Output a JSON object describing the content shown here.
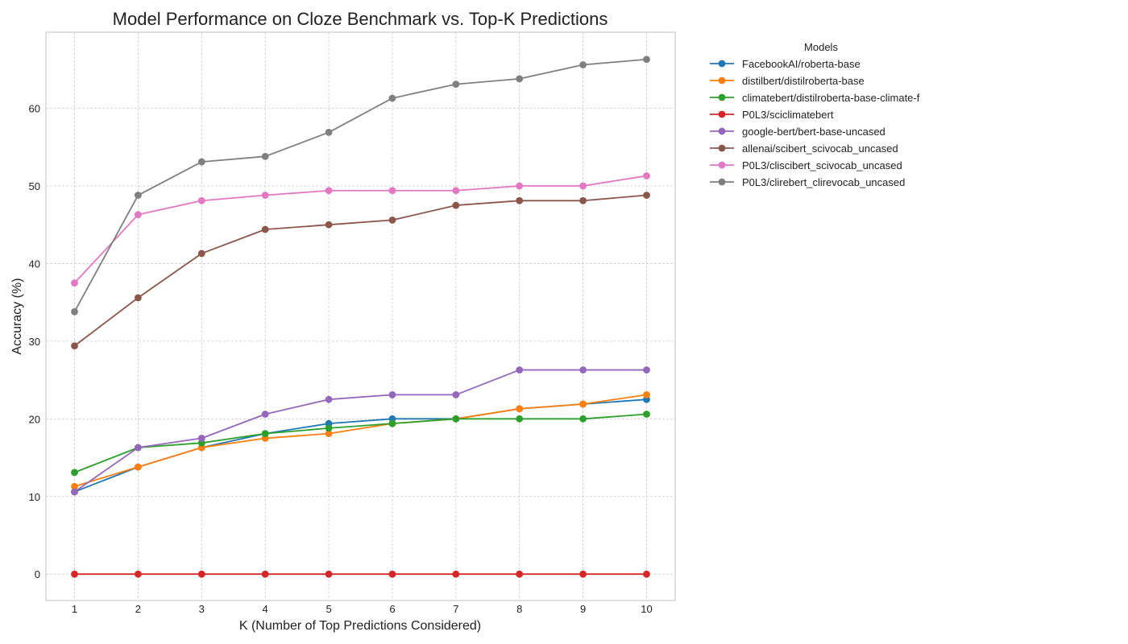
{
  "chart_data": {
    "type": "line",
    "title": "Model Performance on Cloze Benchmark vs. Top-K Predictions",
    "xlabel": "K (Number of Top Predictions Considered)",
    "ylabel": "Accuracy (%)",
    "x": [
      1,
      2,
      3,
      4,
      5,
      6,
      7,
      8,
      9,
      10
    ],
    "xlim": [
      0.55,
      10.45
    ],
    "ylim": [
      -3.4,
      69.8
    ],
    "xticks": [
      "1",
      "2",
      "3",
      "4",
      "5",
      "6",
      "7",
      "8",
      "9",
      "10"
    ],
    "yticks": [
      0,
      10,
      20,
      30,
      40,
      50,
      60
    ],
    "ytick_labels": [
      "0",
      "10",
      "20",
      "30",
      "40",
      "50",
      "60"
    ],
    "grid": true,
    "legend_title": "Models",
    "legend_position": "outside right, top",
    "series": [
      {
        "name": "FacebookAI/roberta-base",
        "color": "#1f77b4",
        "values": [
          10.6,
          13.8,
          16.3,
          18.1,
          19.4,
          20.0,
          20.0,
          21.3,
          21.9,
          22.5
        ]
      },
      {
        "name": "distilbert/distilroberta-base",
        "color": "#ff7f0e",
        "values": [
          11.3,
          13.8,
          16.3,
          17.5,
          18.1,
          19.4,
          20.0,
          21.3,
          21.9,
          23.1
        ]
      },
      {
        "name": "climatebert/distilroberta-base-climate-f",
        "color": "#2ca02c",
        "values": [
          13.1,
          16.3,
          16.9,
          18.1,
          18.8,
          19.4,
          20.0,
          20.0,
          20.0,
          20.6
        ]
      },
      {
        "name": "P0L3/sciclimatebert",
        "color": "#d62728",
        "values": [
          0,
          0,
          0,
          0,
          0,
          0,
          0,
          0,
          0,
          0
        ]
      },
      {
        "name": "google-bert/bert-base-uncased",
        "color": "#9467bd",
        "values": [
          10.6,
          16.3,
          17.5,
          20.6,
          22.5,
          23.1,
          23.1,
          26.3,
          26.3,
          26.3
        ]
      },
      {
        "name": "allenai/scibert_scivocab_uncased",
        "color": "#8c564b",
        "values": [
          29.4,
          35.6,
          41.3,
          44.4,
          45.0,
          45.6,
          47.5,
          48.1,
          48.1,
          48.8
        ]
      },
      {
        "name": "P0L3/cliscibert_scivocab_uncased",
        "color": "#e377c2",
        "values": [
          37.5,
          46.3,
          48.1,
          48.8,
          49.4,
          49.4,
          49.4,
          50.0,
          50.0,
          51.3
        ]
      },
      {
        "name": "P0L3/clirebert_clirevocab_uncased",
        "color": "#7f7f7f",
        "values": [
          33.8,
          48.8,
          53.1,
          53.8,
          56.9,
          61.3,
          63.1,
          63.8,
          65.6,
          66.3
        ]
      }
    ]
  }
}
